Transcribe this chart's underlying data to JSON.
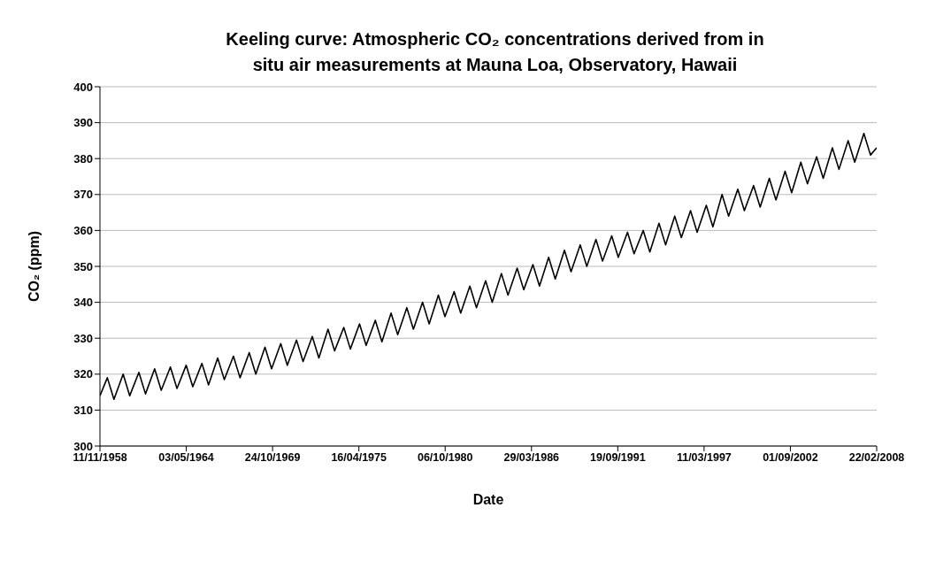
{
  "chart_data": {
    "type": "line",
    "title": "Keeling curve: Atmospheric CO₂ concentrations derived from in situ air measurements at Mauna Loa, Observatory, Hawaii",
    "xlabel": "Date",
    "ylabel": "CO₂ (ppm)",
    "x": [
      "1958-11-11",
      "1959-05",
      "1959-10",
      "1960-05",
      "1960-10",
      "1961-05",
      "1961-10",
      "1962-05",
      "1962-10",
      "1963-05",
      "1963-10",
      "1964-05",
      "1964-10",
      "1965-05",
      "1965-10",
      "1966-05",
      "1966-10",
      "1967-05",
      "1967-10",
      "1968-05",
      "1968-10",
      "1969-05",
      "1969-10",
      "1970-05",
      "1970-10",
      "1971-05",
      "1971-10",
      "1972-05",
      "1972-10",
      "1973-05",
      "1973-10",
      "1974-05",
      "1974-10",
      "1975-05",
      "1975-10",
      "1976-05",
      "1976-10",
      "1977-05",
      "1977-10",
      "1978-05",
      "1978-10",
      "1979-05",
      "1979-10",
      "1980-05",
      "1980-10",
      "1981-05",
      "1981-10",
      "1982-05",
      "1982-10",
      "1983-05",
      "1983-10",
      "1984-05",
      "1984-10",
      "1985-05",
      "1985-10",
      "1986-05",
      "1986-10",
      "1987-05",
      "1987-10",
      "1988-05",
      "1988-10",
      "1989-05",
      "1989-10",
      "1990-05",
      "1990-10",
      "1991-05",
      "1991-10",
      "1992-05",
      "1992-10",
      "1993-05",
      "1993-10",
      "1994-05",
      "1994-10",
      "1995-05",
      "1995-10",
      "1996-05",
      "1996-10",
      "1997-05",
      "1997-10",
      "1998-05",
      "1998-10",
      "1999-05",
      "1999-10",
      "2000-05",
      "2000-10",
      "2001-05",
      "2001-10",
      "2002-05",
      "2002-10",
      "2003-05",
      "2003-10",
      "2004-05",
      "2004-10",
      "2005-05",
      "2005-10",
      "2006-05",
      "2006-10",
      "2007-05",
      "2007-10",
      "2008-02-22"
    ],
    "values": [
      314,
      319,
      313,
      320,
      314,
      320.5,
      314.5,
      321.5,
      315.5,
      322,
      316,
      322.5,
      316.5,
      323,
      317,
      324.5,
      318.5,
      325,
      319,
      326,
      320,
      327.5,
      321.5,
      328.5,
      322.5,
      329.5,
      323.5,
      330.5,
      324.5,
      332.5,
      326.5,
      333,
      327,
      334,
      328,
      335,
      329,
      337,
      331,
      338.5,
      332.5,
      340,
      334,
      342,
      336,
      343,
      337,
      344.5,
      338.5,
      346,
      340,
      348,
      342,
      349.5,
      343.5,
      350.5,
      344.5,
      352.5,
      346.5,
      354.5,
      348.5,
      356,
      350,
      357.5,
      351.5,
      358.5,
      352.5,
      359.5,
      353.5,
      360,
      354,
      362,
      356,
      364,
      358,
      365.5,
      359.5,
      367,
      361,
      370,
      364,
      371.5,
      365.5,
      372.5,
      366.5,
      374.5,
      368.5,
      376.5,
      370.5,
      379,
      373,
      380.5,
      374.5,
      383,
      377,
      385,
      379,
      387,
      381,
      383
    ],
    "color": "#000000",
    "marker": "none",
    "line_style": "solid",
    "xlim": [
      "1958-11-11",
      "2008-02-22"
    ],
    "xticks": [
      {
        "value": "1958-11-11",
        "label": "11/11/1958"
      },
      {
        "value": "1964-05-03",
        "label": "03/05/1964"
      },
      {
        "value": "1969-10-24",
        "label": "24/10/1969"
      },
      {
        "value": "1975-04-16",
        "label": "16/04/1975"
      },
      {
        "value": "1980-10-06",
        "label": "06/10/1980"
      },
      {
        "value": "1986-03-29",
        "label": "29/03/1986"
      },
      {
        "value": "1991-09-19",
        "label": "19/09/1991"
      },
      {
        "value": "1997-03-11",
        "label": "11/03/1997"
      },
      {
        "value": "2002-09-01",
        "label": "01/09/2002"
      },
      {
        "value": "2008-02-22",
        "label": "22/02/2008"
      }
    ],
    "ylim": [
      300,
      400
    ],
    "yticks": [
      300,
      310,
      320,
      330,
      340,
      350,
      360,
      370,
      380,
      390,
      400
    ],
    "grid": "y"
  }
}
